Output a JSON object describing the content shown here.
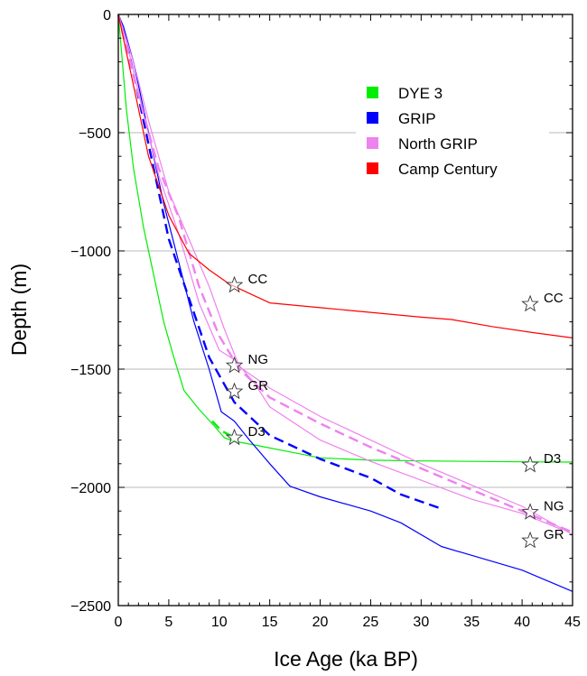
{
  "chart_data": {
    "type": "line",
    "xlabel": "Ice Age (ka BP)",
    "ylabel": "Depth (m)",
    "xlim": [
      0,
      45
    ],
    "ylim": [
      -2500,
      0
    ],
    "xticks": [
      0,
      5,
      10,
      15,
      20,
      25,
      30,
      35,
      40,
      45
    ],
    "yticks": [
      0,
      -500,
      -1000,
      -1500,
      -2000,
      -2500
    ],
    "xtick_labels": [
      "0",
      "5",
      "10",
      "15",
      "20",
      "25",
      "30",
      "35",
      "40",
      "45"
    ],
    "ytick_labels": [
      "0",
      "−500",
      "−1000",
      "−1500",
      "−2000",
      "−2500"
    ],
    "grid": "horizontal at -500, -1000, -1500, -2000",
    "legend": {
      "placement": "top-right",
      "entries": [
        {
          "name": "DYE 3",
          "color": "#00ee00"
        },
        {
          "name": "GRIP",
          "color": "#0000ff"
        },
        {
          "name": "North GRIP",
          "color": "#ee82ee"
        },
        {
          "name": "Camp Century",
          "color": "#ff0000"
        }
      ]
    },
    "series": [
      {
        "name": "DYE 3",
        "color": "#00ee00",
        "dashed": false,
        "points": [
          [
            0,
            0
          ],
          [
            0.3,
            -150
          ],
          [
            0.8,
            -400
          ],
          [
            1.5,
            -650
          ],
          [
            2.5,
            -900
          ],
          [
            3.5,
            -1100
          ],
          [
            4.5,
            -1300
          ],
          [
            5.5,
            -1450
          ],
          [
            6.5,
            -1590
          ],
          [
            8,
            -1670
          ],
          [
            9.5,
            -1740
          ],
          [
            10.5,
            -1790
          ],
          [
            11.5,
            -1805
          ],
          [
            14,
            -1825
          ],
          [
            17,
            -1850
          ],
          [
            20,
            -1875
          ],
          [
            25,
            -1885
          ],
          [
            30,
            -1888
          ],
          [
            35,
            -1890
          ],
          [
            40,
            -1892
          ],
          [
            45,
            -1893
          ]
        ]
      },
      {
        "name": "DYE 3",
        "color": "#00ee00",
        "dashed": true,
        "points": [
          [
            9.3,
            -1720
          ],
          [
            10.2,
            -1760
          ],
          [
            11.5,
            -1790
          ]
        ]
      },
      {
        "name": "GRIP",
        "color": "#0000ff",
        "dashed": false,
        "points": [
          [
            0,
            0
          ],
          [
            0.5,
            -50
          ],
          [
            1.5,
            -200
          ],
          [
            3,
            -500
          ],
          [
            4.5,
            -800
          ],
          [
            6,
            -1050
          ],
          [
            7.5,
            -1300
          ],
          [
            9,
            -1500
          ],
          [
            10.2,
            -1680
          ],
          [
            11.5,
            -1720
          ],
          [
            13,
            -1800
          ],
          [
            15,
            -1900
          ],
          [
            17,
            -1995
          ],
          [
            20,
            -2040
          ],
          [
            25,
            -2100
          ],
          [
            28,
            -2150
          ],
          [
            32,
            -2250
          ],
          [
            36,
            -2300
          ],
          [
            40,
            -2350
          ],
          [
            45,
            -2440
          ]
        ]
      },
      {
        "name": "GRIP",
        "color": "#0000ff",
        "dashed": true,
        "points": [
          [
            0,
            0
          ],
          [
            1,
            -150
          ],
          [
            2,
            -350
          ],
          [
            3.5,
            -650
          ],
          [
            5,
            -950
          ],
          [
            7,
            -1200
          ],
          [
            9,
            -1450
          ],
          [
            11.5,
            -1640
          ],
          [
            15,
            -1780
          ],
          [
            20,
            -1880
          ],
          [
            25,
            -1960
          ],
          [
            28,
            -2030
          ],
          [
            32,
            -2090
          ]
        ]
      },
      {
        "name": "North GRIP",
        "color": "#ee82ee",
        "dashed": false,
        "points": [
          [
            0,
            0
          ],
          [
            1,
            -150
          ],
          [
            2.5,
            -420
          ],
          [
            4,
            -680
          ],
          [
            6,
            -930
          ],
          [
            8,
            -1220
          ],
          [
            10,
            -1420
          ],
          [
            11.5,
            -1460
          ],
          [
            13.5,
            -1560
          ],
          [
            15,
            -1660
          ],
          [
            20,
            -1800
          ],
          [
            25,
            -1890
          ],
          [
            30,
            -1970
          ],
          [
            35,
            -2050
          ],
          [
            40,
            -2110
          ],
          [
            44,
            -2180
          ]
        ]
      },
      {
        "name": "North GRIP",
        "color": "#ee82ee",
        "dashed": false,
        "points": [
          [
            0,
            0
          ],
          [
            1.5,
            -200
          ],
          [
            3,
            -450
          ],
          [
            5,
            -750
          ],
          [
            7,
            -950
          ],
          [
            9,
            -1150
          ],
          [
            10.5,
            -1330
          ],
          [
            12,
            -1490
          ],
          [
            15,
            -1580
          ],
          [
            20,
            -1700
          ],
          [
            25,
            -1800
          ],
          [
            30,
            -1900
          ],
          [
            35,
            -1990
          ],
          [
            40,
            -2080
          ],
          [
            45,
            -2200
          ]
        ]
      },
      {
        "name": "North GRIP",
        "color": "#ee82ee",
        "dashed": true,
        "points": [
          [
            0,
            0
          ],
          [
            1,
            -180
          ],
          [
            2.5,
            -420
          ],
          [
            4,
            -650
          ],
          [
            6,
            -860
          ],
          [
            8,
            -1150
          ],
          [
            10,
            -1360
          ],
          [
            12,
            -1500
          ],
          [
            15,
            -1620
          ],
          [
            20,
            -1730
          ],
          [
            25,
            -1830
          ],
          [
            30,
            -1920
          ],
          [
            35,
            -2010
          ],
          [
            40,
            -2100
          ],
          [
            45,
            -2190
          ]
        ]
      },
      {
        "name": "Camp Century",
        "color": "#ff0000",
        "dashed": false,
        "points": [
          [
            0,
            0
          ],
          [
            0.5,
            -100
          ],
          [
            1.5,
            -300
          ],
          [
            3,
            -600
          ],
          [
            5,
            -850
          ],
          [
            7,
            -1010
          ],
          [
            9,
            -1080
          ],
          [
            11,
            -1140
          ],
          [
            13,
            -1180
          ],
          [
            15,
            -1220
          ],
          [
            20,
            -1240
          ],
          [
            25,
            -1260
          ],
          [
            30,
            -1280
          ],
          [
            33,
            -1290
          ],
          [
            37,
            -1320
          ],
          [
            41,
            -1345
          ],
          [
            45,
            -1368
          ]
        ]
      }
    ],
    "annotations": [
      {
        "label": "CC",
        "x": 11.5,
        "y": -1145
      },
      {
        "label": "NG",
        "x": 11.5,
        "y": -1485
      },
      {
        "label": "GR",
        "x": 11.5,
        "y": -1595
      },
      {
        "label": "D3",
        "x": 11.5,
        "y": -1790
      },
      {
        "label": "CC",
        "x": 40.8,
        "y": -1225
      },
      {
        "label": "D3",
        "x": 40.8,
        "y": -1905
      },
      {
        "label": "NG",
        "x": 40.8,
        "y": -2105
      },
      {
        "label": "GR",
        "x": 40.8,
        "y": -2225
      }
    ]
  }
}
